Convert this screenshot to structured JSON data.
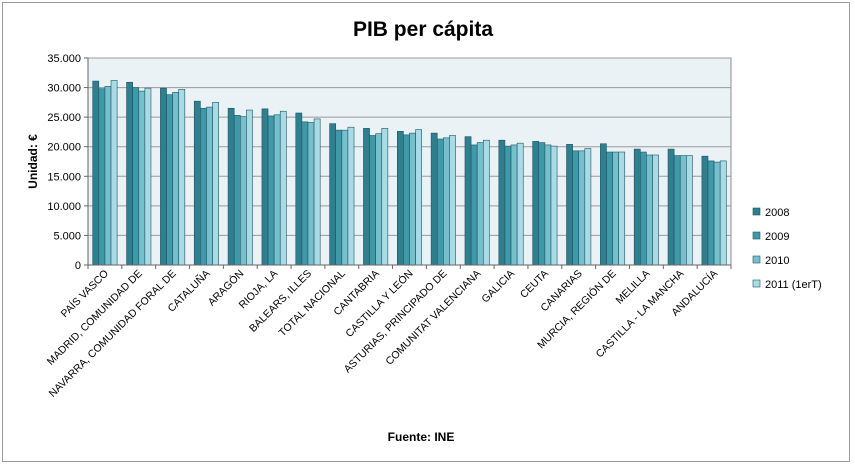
{
  "chart_data": {
    "type": "bar",
    "title": "PIB per cápita",
    "xlabel": "Fuente: INE",
    "ylabel": "Unidad: €",
    "ylim": [
      0,
      35000
    ],
    "yticks": [
      0,
      5000,
      10000,
      15000,
      20000,
      25000,
      30000,
      35000
    ],
    "ytick_labels": [
      "0",
      "5.000",
      "10.000",
      "15.000",
      "20.000",
      "25.000",
      "30.000",
      "35.000"
    ],
    "grid": true,
    "legend_position": "right",
    "categories": [
      "PAÍS VASCO",
      "MADRID, COMUNIDAD DE",
      "NAVARRA, COMUNIDAD FORAL DE",
      "CATALUÑA",
      "ARAGÓN",
      "RIOJA, LA",
      "BALEARS, ILLES",
      "TOTAL NACIONAL",
      "CANTABRIA",
      "CASTILLA Y LEÓN",
      "ASTURIAS, PRINCIPADO DE",
      "COMUNITAT VALENCIANA",
      "GALICIA",
      "CEUTA",
      "CANARIAS",
      "MURCIA, REGIÓN DE",
      "MELILLA",
      "CASTILLA - LA MANCHA",
      "ANDALUCÍA"
    ],
    "series": [
      {
        "name": "2008",
        "color": "#2f7f8f",
        "values": [
          31100,
          30900,
          29900,
          27700,
          26500,
          26400,
          25700,
          23900,
          23100,
          22600,
          22300,
          21700,
          21100,
          20900,
          20400,
          20500,
          19600,
          19600,
          18400
        ]
      },
      {
        "name": "2009",
        "color": "#3f99a9",
        "values": [
          29800,
          30000,
          28800,
          26500,
          25300,
          25200,
          24200,
          22800,
          21900,
          22000,
          21300,
          20300,
          20100,
          20700,
          19300,
          19100,
          19100,
          18500,
          17600
        ]
      },
      {
        "name": "2010",
        "color": "#76bfcc",
        "values": [
          30200,
          29400,
          29200,
          26700,
          25100,
          25400,
          24100,
          22800,
          22200,
          22300,
          21500,
          20700,
          20300,
          20300,
          19300,
          19100,
          18600,
          18500,
          17400
        ]
      },
      {
        "name": "2011 (1erT)",
        "color": "#a9dbe6",
        "values": [
          31200,
          29900,
          29700,
          27500,
          26200,
          26000,
          24700,
          23300,
          23100,
          22900,
          21900,
          21100,
          20600,
          20100,
          19700,
          19100,
          18600,
          18500,
          17600
        ]
      }
    ]
  }
}
